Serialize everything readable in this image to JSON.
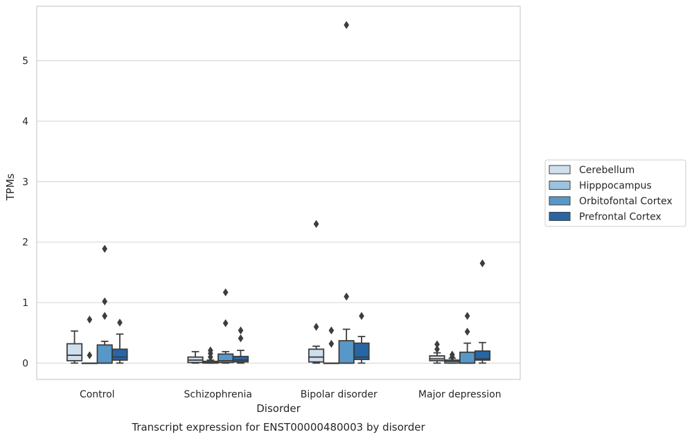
{
  "chart_data": {
    "type": "box",
    "title": "Transcript expression for ENST00000480003 by disorder",
    "xlabel": "Disorder",
    "ylabel": "TPMs",
    "ylim": [
      -0.27,
      5.9
    ],
    "yticks": [
      0,
      1,
      2,
      3,
      4,
      5
    ],
    "grid": "horizontal",
    "legend_position": "right",
    "categories": [
      "Control",
      "Schizophrenia",
      "Bipolar disorder",
      "Major depression"
    ],
    "series": [
      {
        "name": "Cerebellum",
        "color": "#cfdfee",
        "boxes": [
          {
            "whisker_low": 0.0,
            "q1": 0.04,
            "median": 0.13,
            "q3": 0.32,
            "whisker_high": 0.53,
            "outliers": []
          },
          {
            "whisker_low": 0.0,
            "q1": 0.01,
            "median": 0.05,
            "q3": 0.1,
            "whisker_high": 0.19,
            "outliers": []
          },
          {
            "whisker_low": 0.0,
            "q1": 0.02,
            "median": 0.1,
            "q3": 0.23,
            "whisker_high": 0.28,
            "outliers": [
              0.6,
              2.3
            ]
          },
          {
            "whisker_low": 0.0,
            "q1": 0.04,
            "median": 0.07,
            "q3": 0.12,
            "whisker_high": 0.17,
            "outliers": [
              0.23,
              0.31
            ]
          }
        ]
      },
      {
        "name": "Hipppocampus",
        "color": "#9cc2de",
        "boxes": [
          {
            "whisker_low": 0.0,
            "q1": 0.0,
            "median": 0.0,
            "q3": 0.0,
            "whisker_high": 0.0,
            "outliers": [
              0.13,
              0.72
            ]
          },
          {
            "whisker_low": 0.0,
            "q1": 0.0,
            "median": 0.01,
            "q3": 0.03,
            "whisker_high": 0.05,
            "outliers": [
              0.1,
              0.16,
              0.21
            ]
          },
          {
            "whisker_low": 0.0,
            "q1": 0.0,
            "median": 0.0,
            "q3": 0.0,
            "whisker_high": 0.0,
            "outliers": [
              0.32,
              0.54
            ]
          },
          {
            "whisker_low": 0.0,
            "q1": 0.0,
            "median": 0.03,
            "q3": 0.05,
            "whisker_high": 0.08,
            "outliers": [
              0.1,
              0.14
            ]
          }
        ]
      },
      {
        "name": "Orbitofontal Cortex",
        "color": "#5898c8",
        "boxes": [
          {
            "whisker_low": 0.0,
            "q1": 0.0,
            "median": 0.0,
            "q3": 0.3,
            "whisker_high": 0.36,
            "outliers": [
              0.78,
              1.02,
              1.89
            ]
          },
          {
            "whisker_low": 0.0,
            "q1": 0.01,
            "median": 0.04,
            "q3": 0.15,
            "whisker_high": 0.19,
            "outliers": [
              0.66,
              1.17
            ]
          },
          {
            "whisker_low": 0.0,
            "q1": 0.0,
            "median": 0.0,
            "q3": 0.37,
            "whisker_high": 0.56,
            "outliers": [
              1.1,
              5.59
            ]
          },
          {
            "whisker_low": 0.0,
            "q1": 0.0,
            "median": 0.0,
            "q3": 0.18,
            "whisker_high": 0.33,
            "outliers": [
              0.52,
              0.78
            ]
          }
        ]
      },
      {
        "name": "Prefrontal Cortex",
        "color": "#2766a6",
        "boxes": [
          {
            "whisker_low": 0.0,
            "q1": 0.05,
            "median": 0.1,
            "q3": 0.23,
            "whisker_high": 0.48,
            "outliers": [
              0.67
            ]
          },
          {
            "whisker_low": 0.0,
            "q1": 0.02,
            "median": 0.05,
            "q3": 0.11,
            "whisker_high": 0.21,
            "outliers": [
              0.41,
              0.54
            ]
          },
          {
            "whisker_low": 0.0,
            "q1": 0.06,
            "median": 0.1,
            "q3": 0.33,
            "whisker_high": 0.44,
            "outliers": [
              0.78
            ]
          },
          {
            "whisker_low": 0.0,
            "q1": 0.05,
            "median": 0.07,
            "q3": 0.2,
            "whisker_high": 0.34,
            "outliers": [
              1.65
            ]
          }
        ]
      }
    ],
    "colors": {
      "grid": "#d9d9d9",
      "frame": "#cccccc",
      "box_edge": "#3d3d3d",
      "text": "#262626"
    }
  }
}
